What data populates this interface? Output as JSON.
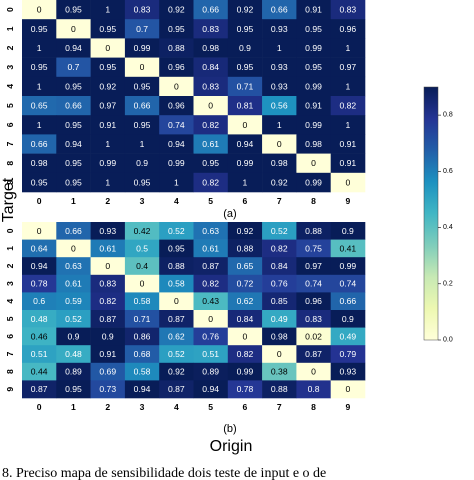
{
  "chart_data": [
    {
      "type": "heatmap",
      "panel_label": "(a)",
      "row_labels": [
        "0",
        "1",
        "2",
        "3",
        "4",
        "5",
        "6",
        "7",
        "8",
        "9"
      ],
      "col_labels": [
        "0",
        "1",
        "2",
        "3",
        "4",
        "5",
        "6",
        "7",
        "8",
        "9"
      ],
      "values": [
        [
          0,
          0.95,
          1,
          0.83,
          0.92,
          0.66,
          0.92,
          0.66,
          0.91,
          0.83
        ],
        [
          0.95,
          0,
          0.95,
          0.7,
          0.95,
          0.83,
          0.95,
          0.93,
          0.95,
          0.96
        ],
        [
          1,
          0.94,
          0,
          0.99,
          0.88,
          0.98,
          0.9,
          1,
          0.99,
          1
        ],
        [
          0.95,
          0.7,
          0.95,
          0,
          0.96,
          0.84,
          0.95,
          0.93,
          0.95,
          0.97
        ],
        [
          1,
          0.95,
          0.92,
          0.95,
          0,
          0.83,
          0.71,
          0.93,
          0.99,
          1
        ],
        [
          0.65,
          0.66,
          0.97,
          0.66,
          0.96,
          0,
          0.81,
          0.56,
          0.91,
          0.82
        ],
        [
          1,
          0.95,
          0.91,
          0.95,
          0.74,
          0.82,
          0,
          1,
          0.99,
          1
        ],
        [
          0.66,
          0.94,
          1,
          1,
          0.94,
          0.61,
          0.94,
          0,
          0.98,
          0.91
        ],
        [
          0.98,
          0.95,
          0.99,
          0.9,
          0.99,
          0.95,
          0.99,
          0.98,
          0,
          0.91
        ],
        [
          0.95,
          0.95,
          1,
          0.95,
          1,
          0.82,
          1,
          0.92,
          0.99,
          0
        ]
      ],
      "value_labels": [
        [
          "0",
          "0.95",
          "1",
          "0.83",
          "0.92",
          "0.66",
          "0.92",
          "0.66",
          "0.91",
          "0.83"
        ],
        [
          "0.95",
          "0",
          "0.95",
          "0.7",
          "0.95",
          "0.83",
          "0.95",
          "0.93",
          "0.95",
          "0.96"
        ],
        [
          "1",
          "0.94",
          "0",
          "0.99",
          "0.88",
          "0.98",
          "0.9",
          "1",
          "0.99",
          "1"
        ],
        [
          "0.95",
          "0.7",
          "0.95",
          "0",
          "0.96",
          "0.84",
          "0.95",
          "0.93",
          "0.95",
          "0.97"
        ],
        [
          "1",
          "0.95",
          "0.92",
          "0.95",
          "0",
          "0.83",
          "0.71",
          "0.93",
          "0.99",
          "1"
        ],
        [
          "0.65",
          "0.66",
          "0.97",
          "0.66",
          "0.96",
          "0",
          "0.81",
          "0.56",
          "0.91",
          "0.82"
        ],
        [
          "1",
          "0.95",
          "0.91",
          "0.95",
          "0.74",
          "0.82",
          "0",
          "1",
          "0.99",
          "1"
        ],
        [
          "0.66",
          "0.94",
          "1",
          "1",
          "0.94",
          "0.61",
          "0.94",
          "0",
          "0.98",
          "0.91"
        ],
        [
          "0.98",
          "0.95",
          "0.99",
          "0.9",
          "0.99",
          "0.95",
          "0.99",
          "0.98",
          "0",
          "0.91"
        ],
        [
          "0.95",
          "0.95",
          "1",
          "0.95",
          "1",
          "0.82",
          "1",
          "0.92",
          "0.99",
          "0"
        ]
      ]
    },
    {
      "type": "heatmap",
      "panel_label": "(b)",
      "row_labels": [
        "0",
        "1",
        "2",
        "3",
        "4",
        "5",
        "6",
        "7",
        "8",
        "9"
      ],
      "col_labels": [
        "0",
        "1",
        "2",
        "3",
        "4",
        "5",
        "6",
        "7",
        "8",
        "9"
      ],
      "values": [
        [
          0,
          0.66,
          0.93,
          0.42,
          0.52,
          0.63,
          0.92,
          0.52,
          0.88,
          0.9
        ],
        [
          0.64,
          0,
          0.61,
          0.5,
          0.95,
          0.61,
          0.88,
          0.82,
          0.75,
          0.41
        ],
        [
          0.94,
          0.63,
          0,
          0.4,
          0.88,
          0.87,
          0.65,
          0.84,
          0.97,
          0.99
        ],
        [
          0.78,
          0.61,
          0.83,
          0,
          0.58,
          0.82,
          0.72,
          0.76,
          0.74,
          0.74
        ],
        [
          0.6,
          0.59,
          0.82,
          0.58,
          0,
          0.43,
          0.62,
          0.85,
          0.96,
          0.66
        ],
        [
          0.48,
          0.52,
          0.87,
          0.71,
          0.87,
          0,
          0.84,
          0.49,
          0.83,
          0.9
        ],
        [
          0.46,
          0.9,
          0.9,
          0.86,
          0.62,
          0.76,
          0,
          0.98,
          0.02,
          0.49
        ],
        [
          0.51,
          0.48,
          0.91,
          0.68,
          0.52,
          0.51,
          0.82,
          0,
          0.87,
          0.79
        ],
        [
          0.44,
          0.89,
          0.69,
          0.58,
          0.92,
          0.89,
          0.99,
          0.38,
          0,
          0.93
        ],
        [
          0.87,
          0.95,
          0.73,
          0.94,
          0.87,
          0.94,
          0.78,
          0.88,
          0.8,
          0
        ]
      ],
      "value_labels": [
        [
          "0",
          "0.66",
          "0.93",
          "0.42",
          "0.52",
          "0.63",
          "0.92",
          "0.52",
          "0.88",
          "0.9"
        ],
        [
          "0.64",
          "0",
          "0.61",
          "0.5",
          "0.95",
          "0.61",
          "0.88",
          "0.82",
          "0.75",
          "0.41"
        ],
        [
          "0.94",
          "0.63",
          "0",
          "0.4",
          "0.88",
          "0.87",
          "0.65",
          "0.84",
          "0.97",
          "0.99"
        ],
        [
          "0.78",
          "0.61",
          "0.83",
          "0",
          "0.58",
          "0.82",
          "0.72",
          "0.76",
          "0.74",
          "0.74"
        ],
        [
          "0.6",
          "0.59",
          "0.82",
          "0.58",
          "0",
          "0.43",
          "0.62",
          "0.85",
          "0.96",
          "0.66"
        ],
        [
          "0.48",
          "0.52",
          "0.87",
          "0.71",
          "0.87",
          "0",
          "0.84",
          "0.49",
          "0.83",
          "0.9"
        ],
        [
          "0.46",
          "0.9",
          "0.9",
          "0.86",
          "0.62",
          "0.76",
          "0",
          "0.98",
          "0.02",
          "0.49"
        ],
        [
          "0.51",
          "0.48",
          "0.91",
          "0.68",
          "0.52",
          "0.51",
          "0.82",
          "0",
          "0.87",
          "0.79"
        ],
        [
          "0.44",
          "0.89",
          "0.69",
          "0.58",
          "0.92",
          "0.89",
          "0.99",
          "0.38",
          "0",
          "0.93"
        ],
        [
          "0.87",
          "0.95",
          "0.73",
          "0.94",
          "0.87",
          "0.94",
          "0.78",
          "0.88",
          "0.8",
          "0"
        ]
      ]
    }
  ],
  "axes": {
    "ylabel": "Target",
    "xlabel": "Origin"
  },
  "colorbar": {
    "range": [
      0,
      0.9
    ],
    "tick_values": [
      0,
      0.2,
      0.4,
      0.6,
      0.8
    ],
    "tick_labels": [
      "0.0",
      "0.2",
      "0.4",
      "0.6",
      "0.8"
    ],
    "colormap": "YlGnBu",
    "colors": [
      "#ffffd9",
      "#edf8b1",
      "#c7e9b4",
      "#7fcdbb",
      "#41b6c4",
      "#1d91c0",
      "#225ea8",
      "#253494",
      "#081d58"
    ]
  },
  "caption_fragment": "8.    Preciso mapa de    sensibilidade    dois teste    de input  e    o  de"
}
